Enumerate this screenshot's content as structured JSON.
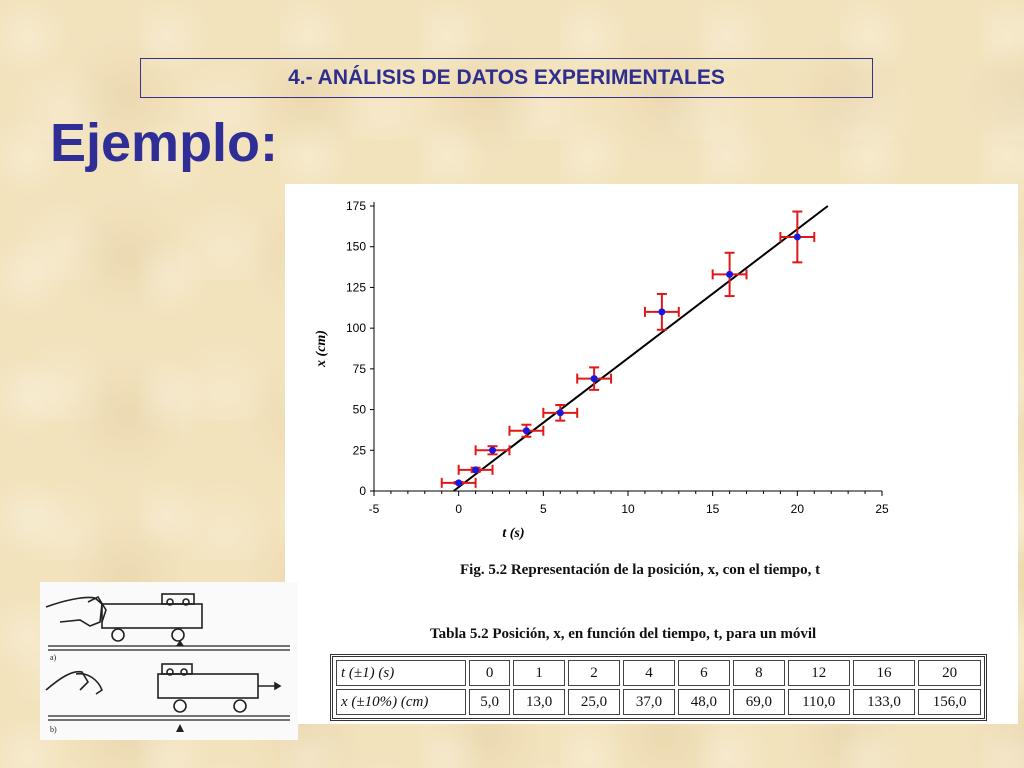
{
  "header": {
    "title": "4.- ANÁLISIS DE DATOS EXPERIMENTALES"
  },
  "slide": {
    "title": "Ejemplo:"
  },
  "figure": {
    "caption": "Fig. 5.2 Representación de la posición, x, con el tiempo, t"
  },
  "table": {
    "caption": "Tabla 5.2 Posición, x,  en función del tiempo, t, para un móvil",
    "rows": [
      {
        "label": "t (±1) (s)",
        "cells": [
          "0",
          "1",
          "2",
          "4",
          "6",
          "8",
          "12",
          "16",
          "20"
        ]
      },
      {
        "label": "x (±10%) (cm)",
        "cells": [
          "5,0",
          "13,0",
          "25,0",
          "37,0",
          "48,0",
          "69,0",
          "110,0",
          "133,0",
          "156,0"
        ]
      }
    ]
  },
  "illustration": {
    "labels": {
      "a": "a)",
      "b": "b)"
    }
  },
  "colors": {
    "title": "#2e2e96",
    "error_bar": "#e01818",
    "point": "#1818e0",
    "fit_line": "#000000"
  },
  "chart_data": {
    "type": "scatter",
    "xlabel": "t  (s)",
    "ylabel": "x (cm)",
    "xlim": [
      -5,
      25
    ],
    "ylim": [
      0,
      175
    ],
    "xticks": [
      -5,
      0,
      5,
      10,
      15,
      20,
      25
    ],
    "yticks": [
      0,
      25,
      50,
      75,
      100,
      125,
      150,
      175
    ],
    "x": [
      0,
      1,
      2,
      4,
      6,
      8,
      12,
      16,
      20
    ],
    "y": [
      5,
      13,
      25,
      37,
      48,
      69,
      110,
      133,
      156
    ],
    "x_error": 1,
    "y_error_relative": 0.1,
    "fit_line": {
      "x": [
        -0.3,
        21.8
      ],
      "y": [
        0,
        175
      ]
    }
  }
}
